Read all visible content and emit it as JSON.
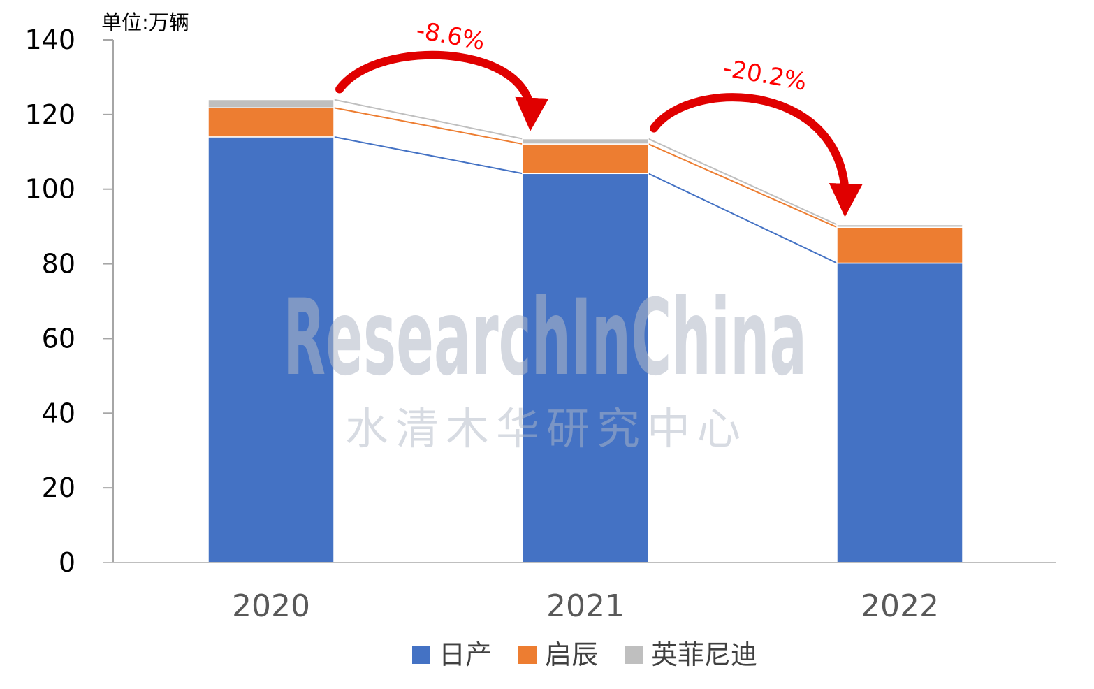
{
  "chart_data": {
    "type": "bar",
    "stacked": true,
    "title": "",
    "unit_label": "单位:万辆",
    "xlabel": "",
    "ylabel": "",
    "categories": [
      "2020",
      "2021",
      "2022"
    ],
    "series": [
      {
        "name": "日产",
        "color": "#4472c4",
        "values": [
          114,
          104.2,
          80.2
        ]
      },
      {
        "name": "启辰",
        "color": "#ed7d31",
        "values": [
          7.8,
          7.9,
          9.6
        ]
      },
      {
        "name": "英菲尼迪",
        "color": "#bfbfbf",
        "values": [
          2.2,
          1.4,
          0.7
        ]
      }
    ],
    "ylim": [
      0,
      140
    ],
    "yticks": [
      0,
      20,
      40,
      60,
      80,
      100,
      120,
      140
    ],
    "annotations": [
      {
        "text": "-8.6%",
        "from": "2020",
        "to": "2021",
        "color": "#ff0000"
      },
      {
        "text": "-20.2%",
        "from": "2021",
        "to": "2022",
        "color": "#ff0000"
      }
    ],
    "legend_position": "bottom",
    "grid": false
  },
  "watermark": {
    "text_en": "ResearchInChina",
    "text_cn": "水清木华研究中心"
  }
}
